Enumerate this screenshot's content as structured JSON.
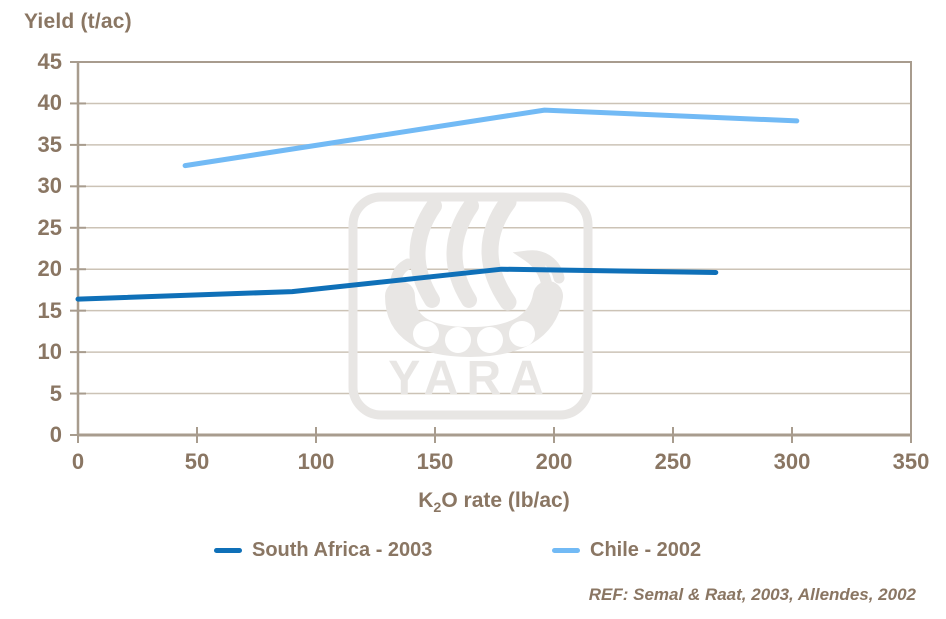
{
  "title": "Yield (t/ac)",
  "ref_note": "REF: Semal & Raat, 2003, Allendes, 2002",
  "watermark": {
    "text": "YARA",
    "color": "#e8e6e4"
  },
  "axis": {
    "xlabel_prefix": "K",
    "xlabel_sub": "2",
    "xlabel_suffix": "O rate (lb/ac)",
    "text_color": "#8a7663",
    "axis_color": "#a89c8e",
    "grid_color": "#ccc3b6",
    "background": "#ffffff"
  },
  "chart_data": {
    "type": "line",
    "title": "",
    "xlabel": "K2O rate (lb/ac)",
    "ylabel": "Yield (t/ac)",
    "xlim": [
      0,
      350
    ],
    "ylim": [
      0,
      45
    ],
    "xticks": [
      0,
      50,
      100,
      150,
      200,
      250,
      300,
      350
    ],
    "yticks": [
      0,
      5,
      10,
      15,
      20,
      25,
      30,
      35,
      40,
      45
    ],
    "grid": "horizontal",
    "legend_position": "bottom",
    "series": [
      {
        "name": "South Africa - 2003",
        "color": "#0f70b8",
        "points": [
          [
            0,
            16.4
          ],
          [
            90,
            17.3
          ],
          [
            178,
            20.0
          ],
          [
            268,
            19.6
          ]
        ]
      },
      {
        "name": "Chile - 2002",
        "color": "#72baf5",
        "points": [
          [
            45,
            32.5
          ],
          [
            196,
            39.2
          ],
          [
            302,
            37.9
          ]
        ]
      }
    ]
  }
}
